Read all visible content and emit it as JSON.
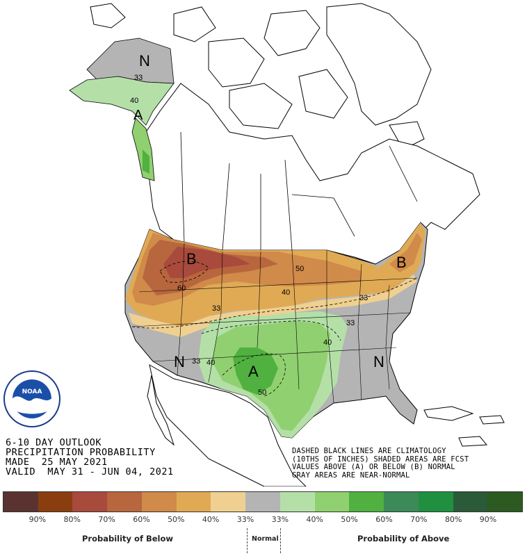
{
  "title": {
    "line1": "6-10 DAY OUTLOOK",
    "line2": "PRECIPITATION PROBABILITY",
    "line3": "MADE  25 MAY 2021",
    "line4": "VALID  MAY 31 - JUN 04, 2021"
  },
  "note": {
    "line1": "DASHED BLACK LINES ARE CLIMATOLOGY",
    "line2": "(10THS OF INCHES) SHADED AREAS ARE FCST",
    "line3": "VALUES ABOVE (A) OR BELOW (B) NORMAL",
    "line4": "GRAY AREAS ARE NEAR-NORMAL"
  },
  "logo": {
    "text": "NOARA",
    "ring_text": "NATIONAL OCEANIC AND ATMOSPHERIC ADMINISTRATION · U.S. DEPARTMENT OF COMMERCE"
  },
  "map_labels": {
    "alaska_n": "N",
    "alaska_33": "33",
    "alaska_40": "40",
    "alaska_a": "A",
    "nw_b": "B",
    "nw_60": "60",
    "north_50": "50",
    "north_40": "40",
    "ne_b": "B",
    "ne_33": "33",
    "center_33": "33",
    "east_33": "33",
    "plains_40": "40",
    "sw_n": "N",
    "sw_33": "33",
    "sw_40": "40",
    "tx_a": "A",
    "tx_50": "50",
    "se_n": "N"
  },
  "legend": {
    "colors": [
      "#5a3330",
      "#8a3e0f",
      "#a84a3c",
      "#b8663e",
      "#d08a4a",
      "#e0aa55",
      "#f0d090",
      "#b4b4b4",
      "#b4e0a8",
      "#90d070",
      "#50b040",
      "#3c8a58",
      "#209040",
      "#2a5a38",
      "#2c5a20"
    ],
    "ticks": [
      "90%",
      "80%",
      "70%",
      "60%",
      "50%",
      "40%",
      "33%",
      "33%",
      "40%",
      "50%",
      "60%",
      "70%",
      "80%",
      "90%"
    ],
    "below_label": "Probability of Below",
    "normal_label": "Normal",
    "above_label": "Probability of Above"
  }
}
